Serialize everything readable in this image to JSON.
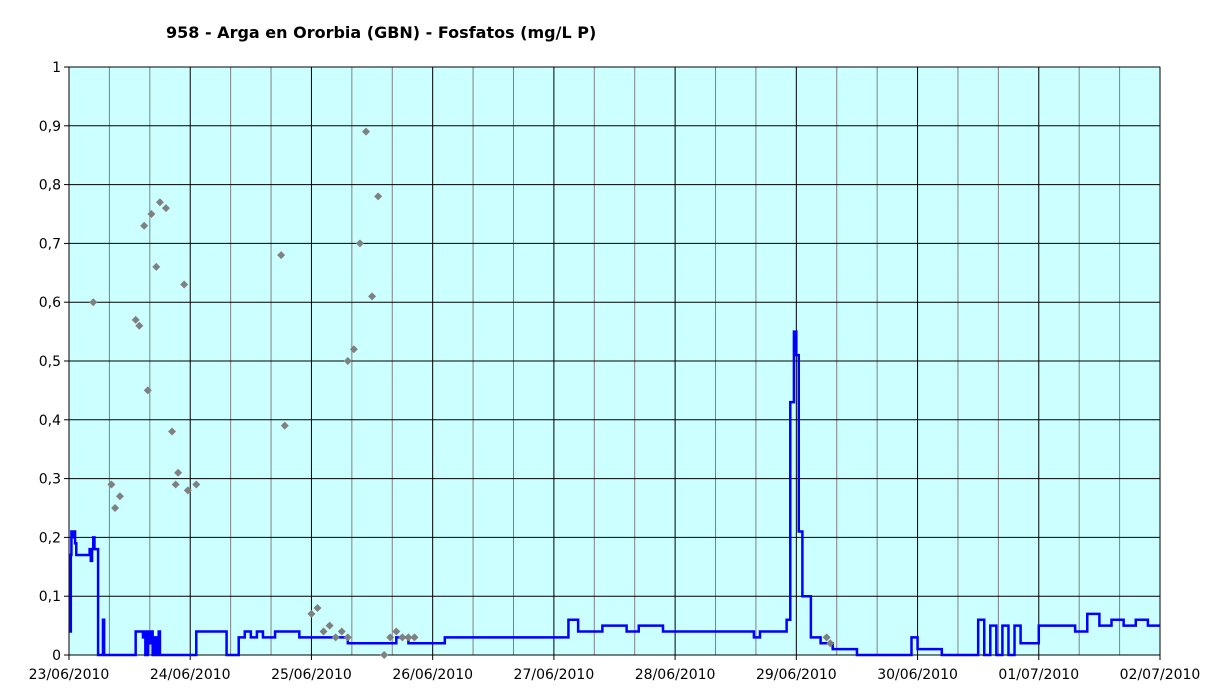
{
  "chart_data": {
    "type": "line",
    "title": "958 - Arga en Ororbia (GBN) - Fosfatos (mg/L P)",
    "xlabel": "",
    "ylabel": "",
    "ylim": [
      0,
      1
    ],
    "y_ticks": [
      0,
      0.1,
      0.2,
      0.3,
      0.4,
      0.5,
      0.6,
      0.7,
      0.8,
      0.9,
      1
    ],
    "y_tick_labels": [
      "0",
      "0,1",
      "0,2",
      "0,3",
      "0,4",
      "0,5",
      "0,6",
      "0,7",
      "0,8",
      "0,9",
      "1"
    ],
    "x_tick_labels": [
      "23/06/2010",
      "24/06/2010",
      "25/06/2010",
      "26/06/2010",
      "27/06/2010",
      "28/06/2010",
      "29/06/2010",
      "30/06/2010",
      "01/07/2010",
      "02/07/2010"
    ],
    "x_range_days": [
      0,
      9
    ],
    "grid": true,
    "colors": {
      "plot_bg": "#ccffff",
      "major_grid": "#000000",
      "minor_grid": "#808080",
      "line": "#0000ff",
      "points": "#808080"
    },
    "series": [
      {
        "type": "line",
        "color": "#0000ff",
        "points": [
          [
            0.0,
            0.04
          ],
          [
            0.015,
            0.17
          ],
          [
            0.02,
            0.21
          ],
          [
            0.035,
            0.2
          ],
          [
            0.04,
            0.21
          ],
          [
            0.05,
            0.19
          ],
          [
            0.06,
            0.17
          ],
          [
            0.17,
            0.18
          ],
          [
            0.18,
            0.16
          ],
          [
            0.19,
            0.18
          ],
          [
            0.2,
            0.2
          ],
          [
            0.21,
            0.18
          ],
          [
            0.24,
            0.0
          ],
          [
            0.27,
            0.0
          ],
          [
            0.28,
            0.06
          ],
          [
            0.29,
            0.0
          ],
          [
            0.54,
            0.0
          ],
          [
            0.55,
            0.04
          ],
          [
            0.6,
            0.04
          ],
          [
            0.61,
            0.03
          ],
          [
            0.62,
            0.04
          ],
          [
            0.63,
            0.0
          ],
          [
            0.65,
            0.04
          ],
          [
            0.66,
            0.02
          ],
          [
            0.68,
            0.04
          ],
          [
            0.69,
            0.0
          ],
          [
            0.71,
            0.03
          ],
          [
            0.72,
            0.0
          ],
          [
            0.74,
            0.04
          ],
          [
            0.75,
            0.0
          ],
          [
            1.0,
            0.0
          ],
          [
            1.05,
            0.04
          ],
          [
            1.1,
            0.04
          ],
          [
            1.3,
            0.0
          ],
          [
            1.35,
            0.0
          ],
          [
            1.4,
            0.03
          ],
          [
            1.45,
            0.04
          ],
          [
            1.5,
            0.03
          ],
          [
            1.55,
            0.04
          ],
          [
            1.6,
            0.03
          ],
          [
            1.7,
            0.04
          ],
          [
            1.9,
            0.03
          ],
          [
            2.2,
            0.03
          ],
          [
            2.3,
            0.02
          ],
          [
            2.5,
            0.02
          ],
          [
            2.6,
            0.02
          ],
          [
            2.7,
            0.03
          ],
          [
            2.8,
            0.02
          ],
          [
            3.0,
            0.02
          ],
          [
            3.1,
            0.03
          ],
          [
            3.3,
            0.03
          ],
          [
            3.9,
            0.03
          ],
          [
            4.05,
            0.03
          ],
          [
            4.12,
            0.06
          ],
          [
            4.2,
            0.04
          ],
          [
            4.4,
            0.05
          ],
          [
            4.6,
            0.04
          ],
          [
            4.7,
            0.05
          ],
          [
            4.9,
            0.04
          ],
          [
            5.0,
            0.04
          ],
          [
            5.6,
            0.04
          ],
          [
            5.65,
            0.03
          ],
          [
            5.7,
            0.04
          ],
          [
            5.9,
            0.04
          ],
          [
            5.92,
            0.06
          ],
          [
            5.95,
            0.43
          ],
          [
            5.98,
            0.55
          ],
          [
            6.0,
            0.51
          ],
          [
            6.02,
            0.21
          ],
          [
            6.05,
            0.1
          ],
          [
            6.12,
            0.03
          ],
          [
            6.2,
            0.02
          ],
          [
            6.3,
            0.01
          ],
          [
            6.5,
            0.0
          ],
          [
            6.9,
            0.0
          ],
          [
            6.95,
            0.03
          ],
          [
            7.0,
            0.01
          ],
          [
            7.2,
            0.0
          ],
          [
            7.45,
            0.0
          ],
          [
            7.5,
            0.06
          ],
          [
            7.55,
            0.0
          ],
          [
            7.6,
            0.05
          ],
          [
            7.65,
            0.0
          ],
          [
            7.7,
            0.05
          ],
          [
            7.75,
            0.0
          ],
          [
            7.8,
            0.05
          ],
          [
            7.85,
            0.02
          ],
          [
            8.0,
            0.05
          ],
          [
            8.2,
            0.05
          ],
          [
            8.3,
            0.04
          ],
          [
            8.4,
            0.07
          ],
          [
            8.5,
            0.05
          ],
          [
            8.6,
            0.06
          ],
          [
            8.7,
            0.05
          ],
          [
            8.8,
            0.06
          ],
          [
            8.9,
            0.05
          ],
          [
            9.0,
            0.05
          ]
        ]
      },
      {
        "type": "scatter",
        "color": "#808080",
        "points": [
          [
            0.2,
            0.6
          ],
          [
            0.35,
            0.29
          ],
          [
            0.38,
            0.25
          ],
          [
            0.42,
            0.27
          ],
          [
            0.55,
            0.57
          ],
          [
            0.58,
            0.56
          ],
          [
            0.62,
            0.73
          ],
          [
            0.65,
            0.45
          ],
          [
            0.68,
            0.75
          ],
          [
            0.72,
            0.66
          ],
          [
            0.75,
            0.77
          ],
          [
            0.8,
            0.76
          ],
          [
            0.85,
            0.38
          ],
          [
            0.88,
            0.29
          ],
          [
            0.9,
            0.31
          ],
          [
            0.95,
            0.63
          ],
          [
            0.98,
            0.28
          ],
          [
            1.05,
            0.29
          ],
          [
            1.75,
            0.68
          ],
          [
            1.78,
            0.39
          ],
          [
            2.0,
            0.07
          ],
          [
            2.05,
            0.08
          ],
          [
            2.1,
            0.04
          ],
          [
            2.15,
            0.05
          ],
          [
            2.2,
            0.03
          ],
          [
            2.25,
            0.04
          ],
          [
            2.3,
            0.03
          ],
          [
            2.3,
            0.5
          ],
          [
            2.35,
            0.52
          ],
          [
            2.4,
            0.7
          ],
          [
            2.45,
            0.89
          ],
          [
            2.5,
            0.61
          ],
          [
            2.55,
            0.78
          ],
          [
            2.6,
            0.0
          ],
          [
            2.65,
            0.03
          ],
          [
            2.7,
            0.04
          ],
          [
            2.75,
            0.03
          ],
          [
            2.8,
            0.03
          ],
          [
            2.85,
            0.03
          ],
          [
            6.25,
            0.03
          ],
          [
            6.28,
            0.02
          ]
        ]
      }
    ]
  }
}
